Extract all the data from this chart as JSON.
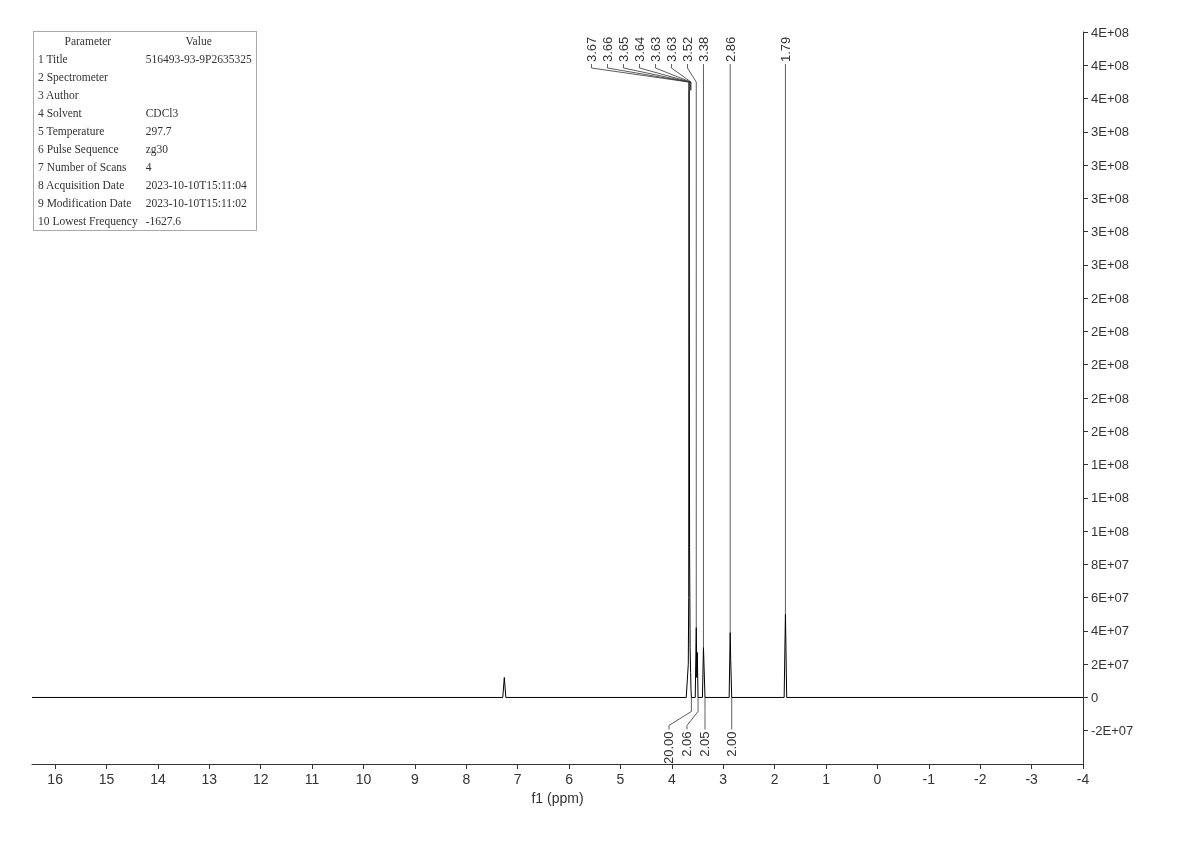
{
  "chart_data": {
    "type": "line",
    "xlabel": "f1 (ppm)",
    "color": "#000000",
    "marker": "none",
    "x": [
      16.45,
      7.29,
      7.26,
      7.23,
      3.72,
      3.68,
      3.672,
      3.665,
      3.655,
      3.645,
      3.635,
      3.628,
      3.62,
      3.545,
      3.525,
      3.515,
      3.505,
      3.49,
      3.405,
      3.385,
      3.375,
      3.355,
      2.885,
      2.865,
      2.855,
      2.835,
      1.815,
      1.79,
      1.765,
      -4
    ],
    "values": [
      0,
      0,
      12000000,
      0,
      0,
      20000000,
      60000000,
      365000000,
      90000000,
      30000000,
      15000000,
      5000000,
      0,
      0,
      42000000,
      12000000,
      27000000,
      0,
      0,
      30000000,
      20000000,
      0,
      0,
      39000000,
      23000000,
      0,
      0,
      50000000,
      0,
      0
    ],
    "xlim": [
      16.45,
      -4
    ],
    "xticks": [
      16,
      15,
      14,
      13,
      12,
      11,
      10,
      9,
      8,
      7,
      6,
      5,
      4,
      3,
      2,
      1,
      0,
      -1,
      -2,
      -3,
      -4
    ],
    "ylim": [
      -40000000,
      400000000
    ],
    "yticks": [
      {
        "value": -20000000,
        "label": "-2E+07"
      },
      0,
      {
        "value": 20000000,
        "label": "2E+07"
      },
      {
        "value": 40000000,
        "label": "4E+07"
      },
      {
        "value": 60000000,
        "label": "6E+07"
      },
      {
        "value": 80000000,
        "label": "8E+07"
      },
      {
        "value": 100000000,
        "label": "1E+08"
      },
      {
        "value": 120000000,
        "label": "1E+08"
      },
      {
        "value": 140000000,
        "label": "1E+08"
      },
      {
        "value": 160000000,
        "label": "2E+08"
      },
      {
        "value": 180000000,
        "label": "2E+08"
      },
      {
        "value": 200000000,
        "label": "2E+08"
      },
      {
        "value": 220000000,
        "label": "2E+08"
      },
      {
        "value": 240000000,
        "label": "2E+08"
      },
      {
        "value": 260000000,
        "label": "3E+08"
      },
      {
        "value": 280000000,
        "label": "3E+08"
      },
      {
        "value": 300000000,
        "label": "3E+08"
      },
      {
        "value": 320000000,
        "label": "3E+08"
      },
      {
        "value": 340000000,
        "label": "3E+08"
      },
      {
        "value": 360000000,
        "label": "4E+08"
      },
      {
        "value": 380000000,
        "label": "4E+08"
      },
      {
        "value": 400000000,
        "label": "4E+08"
      }
    ],
    "annotations": [
      "Parameter\tValue",
      "1 Title\t516493-93-9P2635325",
      "2 Spectrometer",
      "3 Author",
      "4 Solvent\tCDCl3",
      "5 Temperature\t297.7",
      "6 Pulse Sequence\tzg30",
      "7 Number of Scans\t4",
      "8 Acquisition Date\t2023-10-10T15:11:04",
      "9 Modification Date\t2023-10-10T15:11:02",
      "10 Lowest Frequency\t-1627.6",
      {
        "text": "3.67",
        "x": 3.672,
        "y": 365000000
      },
      {
        "text": "3.66",
        "x": 3.665,
        "y": 365000000
      },
      {
        "text": "3.65",
        "x": 3.655,
        "y": 365000000
      },
      {
        "text": "3.64",
        "x": 3.645,
        "y": 365000000
      },
      {
        "text": "3.63",
        "x": 3.635,
        "y": 365000000
      },
      {
        "text": "3.63",
        "x": 3.628,
        "y": 365000000
      },
      {
        "text": "3.52",
        "x": 3.525,
        "y": 42000000
      },
      {
        "text": "3.38",
        "x": 3.385,
        "y": 30000000
      },
      {
        "text": "2.86",
        "x": 2.865,
        "y": 39000000
      },
      {
        "text": "1.79",
        "x": 1.79,
        "y": 50000000
      },
      {
        "text": "20.00",
        "x": 3.62,
        "y": 0
      },
      {
        "text": "2.06",
        "x": 3.49,
        "y": 0
      },
      {
        "text": "2.05",
        "x": 3.355,
        "y": 0
      },
      {
        "text": "2.00",
        "x": 2.835,
        "y": 0
      }
    ]
  }
}
